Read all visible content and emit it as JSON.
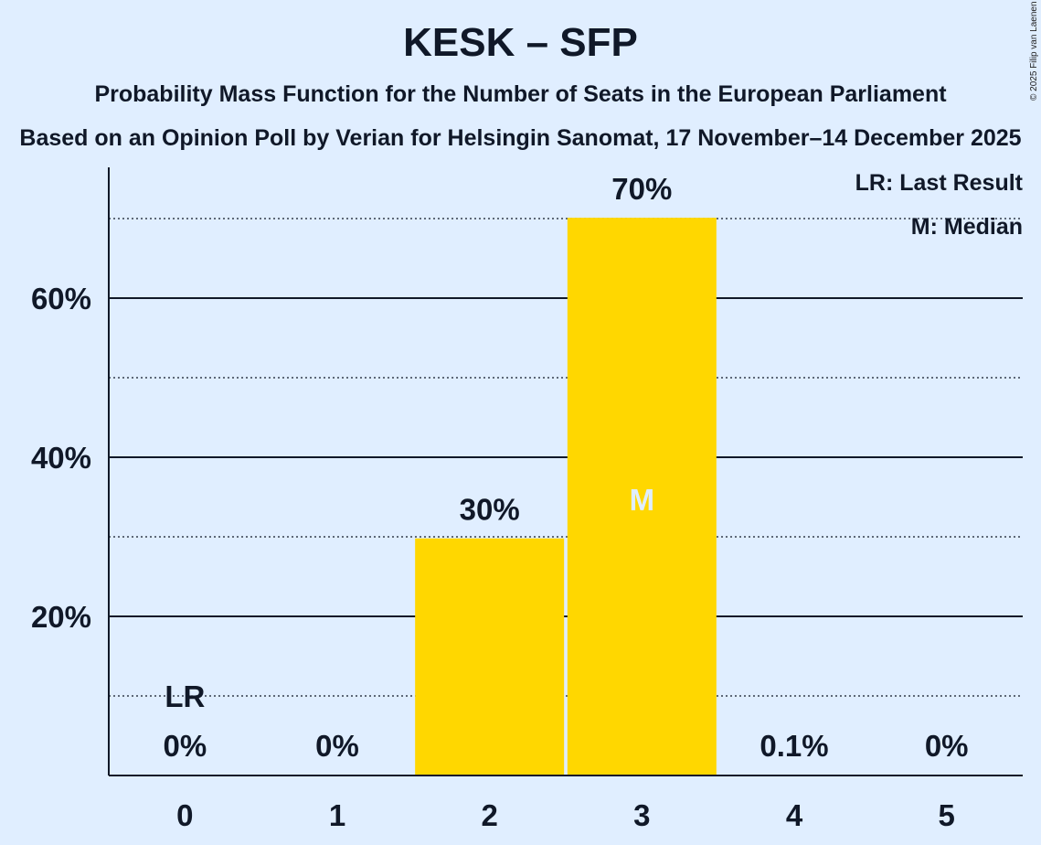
{
  "header": {
    "title": "KESK – SFP",
    "subtitle": "Probability Mass Function for the Number of Seats in the European Parliament",
    "subtitle2": "Based on an Opinion Poll by Verian for Helsingin Sanomat, 17 November–14 December 2025",
    "copyright": "© 2025 Filip van Laenen"
  },
  "legend": {
    "last_result": "LR: Last Result",
    "median": "M: Median"
  },
  "chart_data": {
    "type": "bar",
    "categories": [
      "0",
      "1",
      "2",
      "3",
      "4",
      "5"
    ],
    "values": [
      0,
      0,
      29.8,
      70.1,
      0.1,
      0
    ],
    "value_labels": [
      "0%",
      "0%",
      "30%",
      "70%",
      "0.1%",
      "0%"
    ],
    "ylim": [
      0,
      76
    ],
    "yticks_major": [
      20,
      40,
      60
    ],
    "ytick_labels": [
      "20%",
      "40%",
      "60%"
    ],
    "yticks_minor": [
      10,
      30,
      50,
      70
    ],
    "last_result_category": "0",
    "last_result_label": "LR",
    "median_category": "3",
    "median_label": "M",
    "bar_color": "#ffd700",
    "median_text_color": "#e0eeff"
  }
}
